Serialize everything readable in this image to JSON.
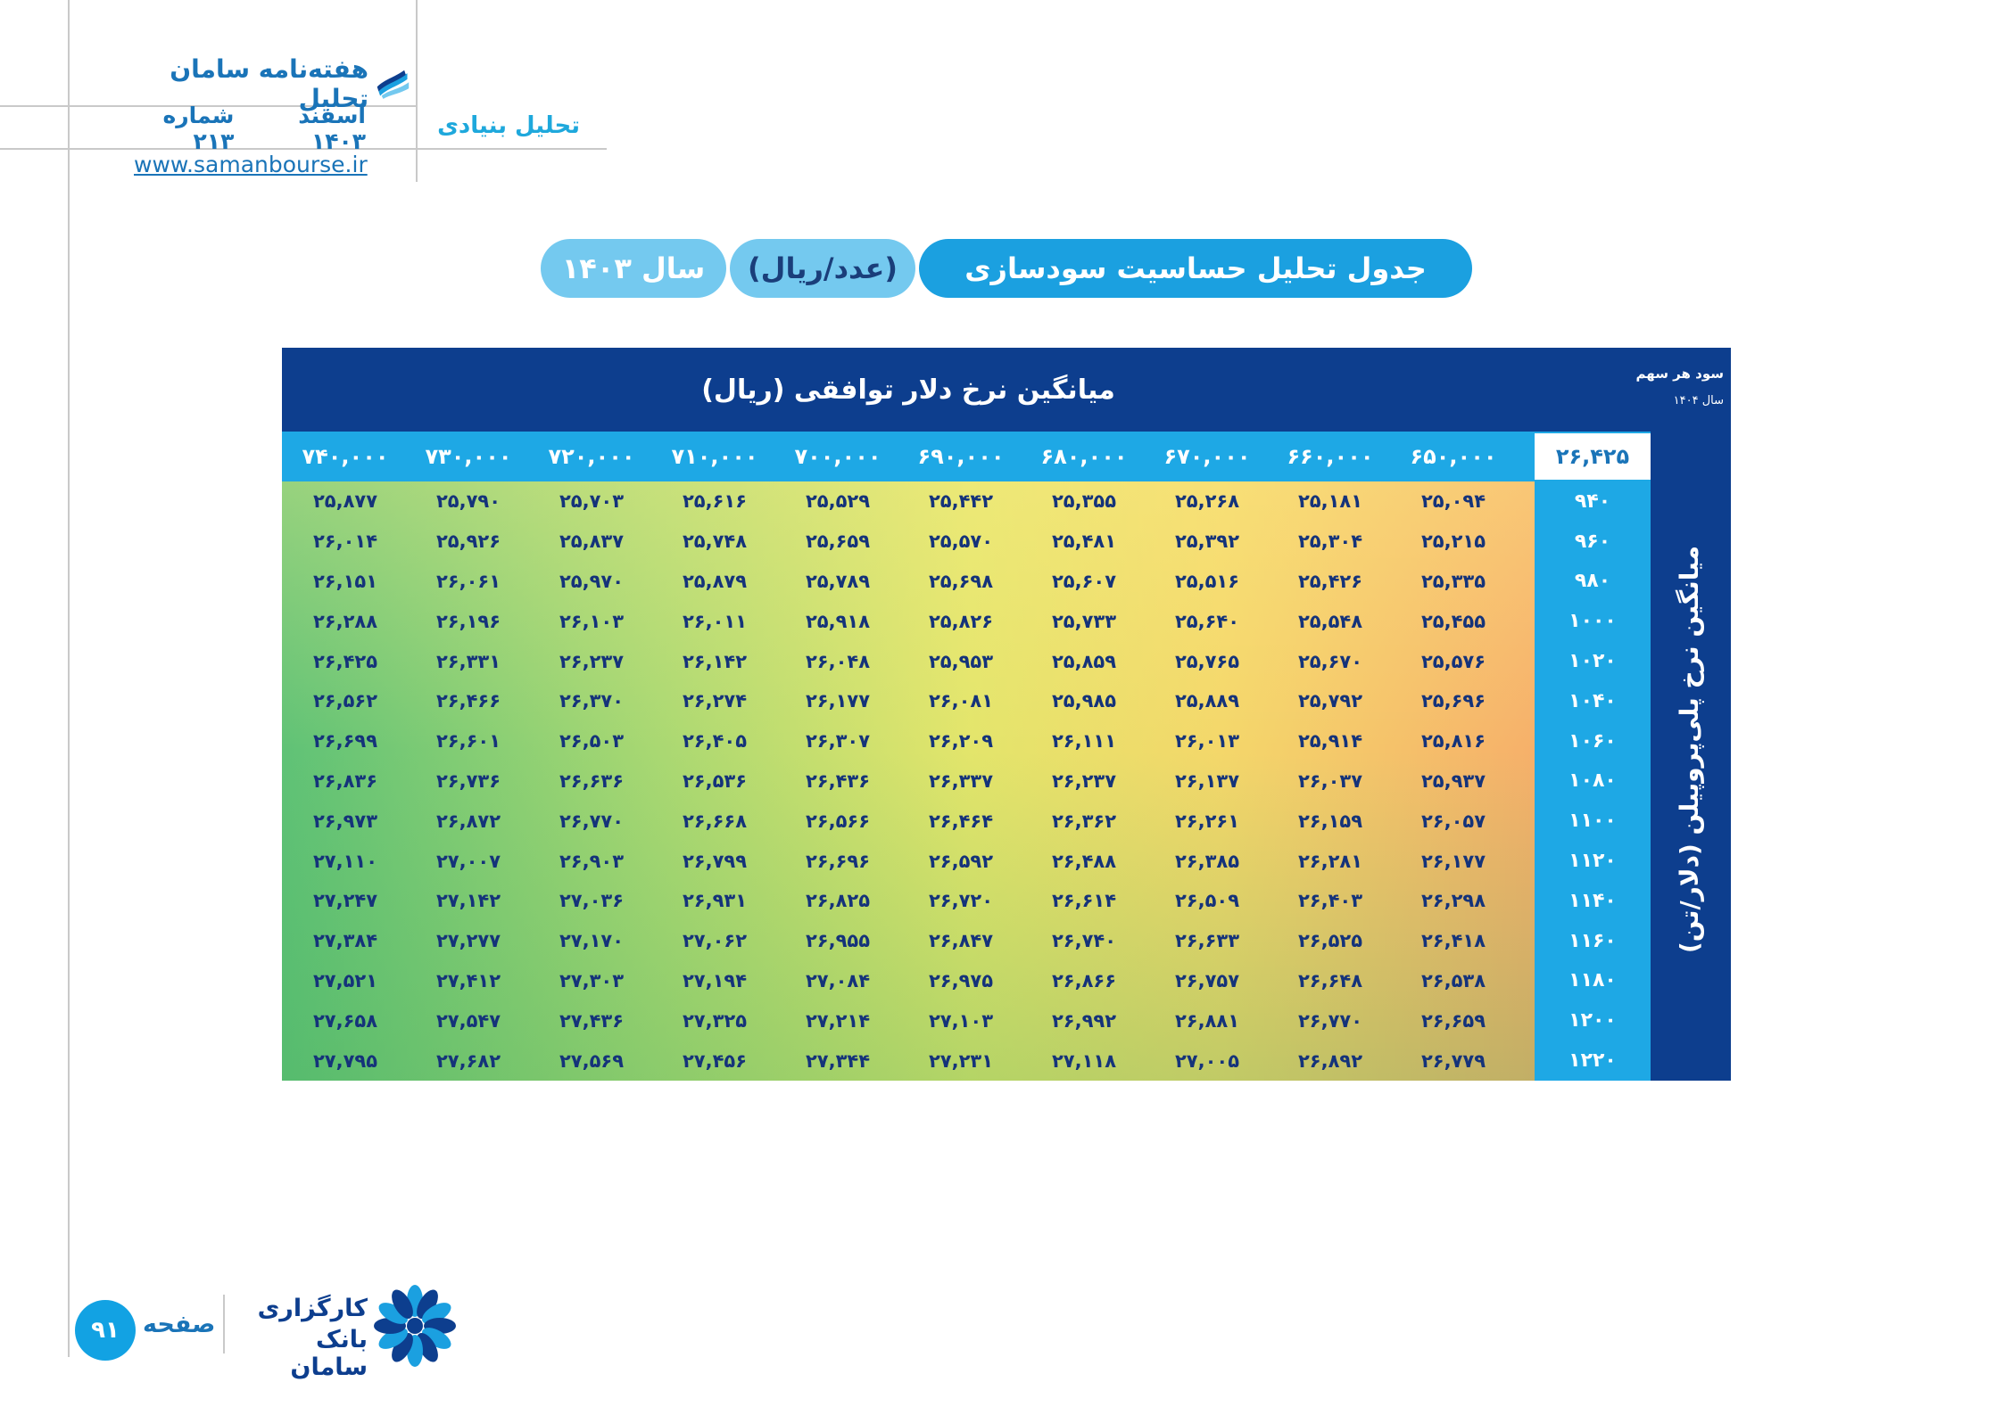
{
  "header": {
    "magazine_title": "هفته‌نامه سامان تحلیل",
    "issue_month": "اسفند ۱۴۰۳",
    "issue_number": "شماره ۲۱۳",
    "website": "www.samanbourse.ir",
    "section": "تحلیل بنیادی",
    "logo_icon": "book-pages-icon"
  },
  "title_bar": {
    "main": "جدول تحلیل حساسیت سودسازی",
    "unit": "(عدد/ریال)",
    "year": "سال ۱۴۰۳"
  },
  "table": {
    "header_title": "میانگین نرخ دلار توافقی (ریال)",
    "corner_line1": "سود هر سهم",
    "corner_line2": "سال ۱۴۰۴",
    "side_label": "میانگین نرخ پلی‌پروپیلن (دلار/تن)",
    "base_value": "۲۶,۴۲۵",
    "columns": [
      "۶۵۰,۰۰۰",
      "۶۶۰,۰۰۰",
      "۶۷۰,۰۰۰",
      "۶۸۰,۰۰۰",
      "۶۹۰,۰۰۰",
      "۷۰۰,۰۰۰",
      "۷۱۰,۰۰۰",
      "۷۲۰,۰۰۰",
      "۷۳۰,۰۰۰",
      "۷۴۰,۰۰۰"
    ],
    "rows": [
      {
        "label": "۹۴۰",
        "values": [
          "۲۵,۰۹۴",
          "۲۵,۱۸۱",
          "۲۵,۲۶۸",
          "۲۵,۳۵۵",
          "۲۵,۴۴۲",
          "۲۵,۵۲۹",
          "۲۵,۶۱۶",
          "۲۵,۷۰۳",
          "۲۵,۷۹۰",
          "۲۵,۸۷۷"
        ]
      },
      {
        "label": "۹۶۰",
        "values": [
          "۲۵,۲۱۵",
          "۲۵,۳۰۴",
          "۲۵,۳۹۲",
          "۲۵,۴۸۱",
          "۲۵,۵۷۰",
          "۲۵,۶۵۹",
          "۲۵,۷۴۸",
          "۲۵,۸۳۷",
          "۲۵,۹۲۶",
          "۲۶,۰۱۴"
        ]
      },
      {
        "label": "۹۸۰",
        "values": [
          "۲۵,۳۳۵",
          "۲۵,۴۲۶",
          "۲۵,۵۱۶",
          "۲۵,۶۰۷",
          "۲۵,۶۹۸",
          "۲۵,۷۸۹",
          "۲۵,۸۷۹",
          "۲۵,۹۷۰",
          "۲۶,۰۶۱",
          "۲۶,۱۵۱"
        ]
      },
      {
        "label": "۱۰۰۰",
        "values": [
          "۲۵,۴۵۵",
          "۲۵,۵۴۸",
          "۲۵,۶۴۰",
          "۲۵,۷۳۳",
          "۲۵,۸۲۶",
          "۲۵,۹۱۸",
          "۲۶,۰۱۱",
          "۲۶,۱۰۳",
          "۲۶,۱۹۶",
          "۲۶,۲۸۸"
        ]
      },
      {
        "label": "۱۰۲۰",
        "values": [
          "۲۵,۵۷۶",
          "۲۵,۶۷۰",
          "۲۵,۷۶۵",
          "۲۵,۸۵۹",
          "۲۵,۹۵۳",
          "۲۶,۰۴۸",
          "۲۶,۱۴۲",
          "۲۶,۲۳۷",
          "۲۶,۳۳۱",
          "۲۶,۴۲۵"
        ]
      },
      {
        "label": "۱۰۴۰",
        "values": [
          "۲۵,۶۹۶",
          "۲۵,۷۹۲",
          "۲۵,۸۸۹",
          "۲۵,۹۸۵",
          "۲۶,۰۸۱",
          "۲۶,۱۷۷",
          "۲۶,۲۷۴",
          "۲۶,۳۷۰",
          "۲۶,۴۶۶",
          "۲۶,۵۶۲"
        ]
      },
      {
        "label": "۱۰۶۰",
        "values": [
          "۲۵,۸۱۶",
          "۲۵,۹۱۴",
          "۲۶,۰۱۳",
          "۲۶,۱۱۱",
          "۲۶,۲۰۹",
          "۲۶,۳۰۷",
          "۲۶,۴۰۵",
          "۲۶,۵۰۳",
          "۲۶,۶۰۱",
          "۲۶,۶۹۹"
        ]
      },
      {
        "label": "۱۰۸۰",
        "values": [
          "۲۵,۹۳۷",
          "۲۶,۰۳۷",
          "۲۶,۱۳۷",
          "۲۶,۲۳۷",
          "۲۶,۳۳۷",
          "۲۶,۴۳۶",
          "۲۶,۵۳۶",
          "۲۶,۶۳۶",
          "۲۶,۷۳۶",
          "۲۶,۸۳۶"
        ]
      },
      {
        "label": "۱۱۰۰",
        "values": [
          "۲۶,۰۵۷",
          "۲۶,۱۵۹",
          "۲۶,۲۶۱",
          "۲۶,۳۶۲",
          "۲۶,۴۶۴",
          "۲۶,۵۶۶",
          "۲۶,۶۶۸",
          "۲۶,۷۷۰",
          "۲۶,۸۷۲",
          "۲۶,۹۷۳"
        ]
      },
      {
        "label": "۱۱۲۰",
        "values": [
          "۲۶,۱۷۷",
          "۲۶,۲۸۱",
          "۲۶,۳۸۵",
          "۲۶,۴۸۸",
          "۲۶,۵۹۲",
          "۲۶,۶۹۶",
          "۲۶,۷۹۹",
          "۲۶,۹۰۳",
          "۲۷,۰۰۷",
          "۲۷,۱۱۰"
        ]
      },
      {
        "label": "۱۱۴۰",
        "values": [
          "۲۶,۲۹۸",
          "۲۶,۴۰۳",
          "۲۶,۵۰۹",
          "۲۶,۶۱۴",
          "۲۶,۷۲۰",
          "۲۶,۸۲۵",
          "۲۶,۹۳۱",
          "۲۷,۰۳۶",
          "۲۷,۱۴۲",
          "۲۷,۲۴۷"
        ]
      },
      {
        "label": "۱۱۶۰",
        "values": [
          "۲۶,۴۱۸",
          "۲۶,۵۲۵",
          "۲۶,۶۳۳",
          "۲۶,۷۴۰",
          "۲۶,۸۴۷",
          "۲۶,۹۵۵",
          "۲۷,۰۶۲",
          "۲۷,۱۷۰",
          "۲۷,۲۷۷",
          "۲۷,۳۸۴"
        ]
      },
      {
        "label": "۱۱۸۰",
        "values": [
          "۲۶,۵۳۸",
          "۲۶,۶۴۸",
          "۲۶,۷۵۷",
          "۲۶,۸۶۶",
          "۲۶,۹۷۵",
          "۲۷,۰۸۴",
          "۲۷,۱۹۴",
          "۲۷,۳۰۳",
          "۲۷,۴۱۲",
          "۲۷,۵۲۱"
        ]
      },
      {
        "label": "۱۲۰۰",
        "values": [
          "۲۶,۶۵۹",
          "۲۶,۷۷۰",
          "۲۶,۸۸۱",
          "۲۶,۹۹۲",
          "۲۷,۱۰۳",
          "۲۷,۲۱۴",
          "۲۷,۳۲۵",
          "۲۷,۴۳۶",
          "۲۷,۵۴۷",
          "۲۷,۶۵۸"
        ]
      },
      {
        "label": "۱۲۲۰",
        "values": [
          "۲۶,۷۷۹",
          "۲۶,۸۹۲",
          "۲۷,۰۰۵",
          "۲۷,۱۱۸",
          "۲۷,۲۳۱",
          "۲۷,۳۴۴",
          "۲۷,۴۵۶",
          "۲۷,۵۶۹",
          "۲۷,۶۸۲",
          "۲۷,۷۹۵"
        ]
      }
    ],
    "colors": {
      "frame": "#0d3e8e",
      "header_row": "#1ea8e5",
      "low": "#f6b06a",
      "high": "#5fc276"
    }
  },
  "footer": {
    "page_number": "۹۱",
    "page_word": "صفحه",
    "broker_line1": "کارگزاری",
    "broker_line2": "بانک سامان",
    "broker_logo": "flower-logo-icon"
  }
}
